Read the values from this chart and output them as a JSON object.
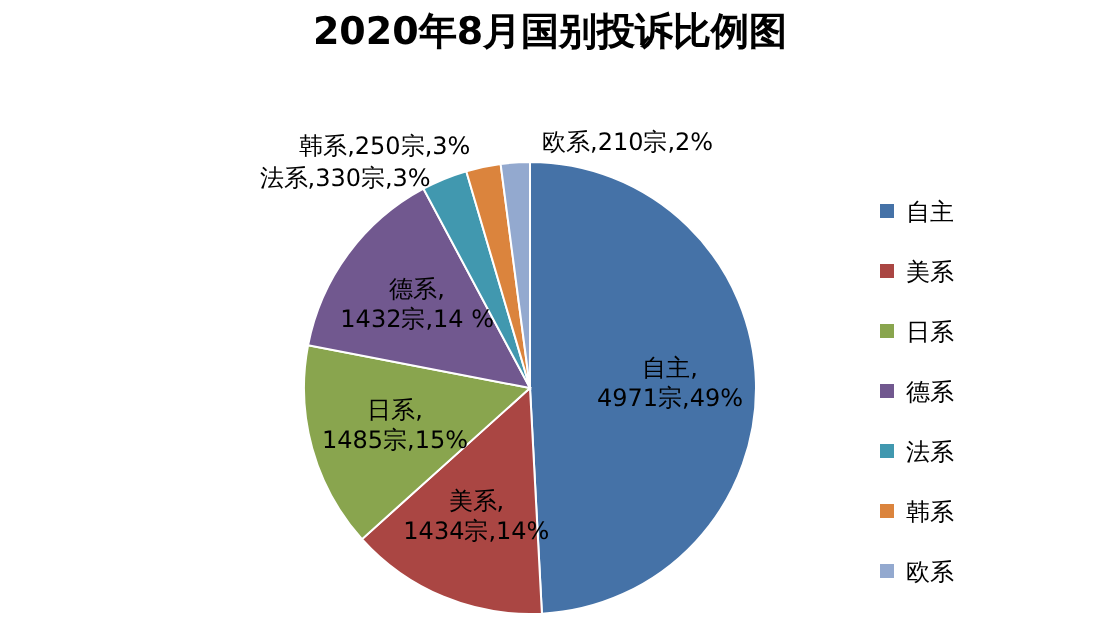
{
  "chart_data": {
    "type": "pie",
    "title": "2020年8月国别投诉比例图",
    "categories": [
      "自主",
      "美系",
      "日系",
      "德系",
      "法系",
      "韩系",
      "欧系"
    ],
    "values": [
      4971,
      1434,
      1485,
      1432,
      330,
      250,
      210
    ],
    "value_labels": [
      "自主,4971宗,49%",
      "美系,1434宗,14%",
      "日系,1485宗,15%",
      "德系,1432宗,14 %",
      "法系,330宗,3%",
      "韩系,250宗,3%",
      "欧系,210宗,2%"
    ],
    "colors": [
      "#4572a7",
      "#aa4643",
      "#89a54e",
      "#71588f",
      "#4198af",
      "#db843d",
      "#93a9cf"
    ],
    "legend": "right"
  }
}
